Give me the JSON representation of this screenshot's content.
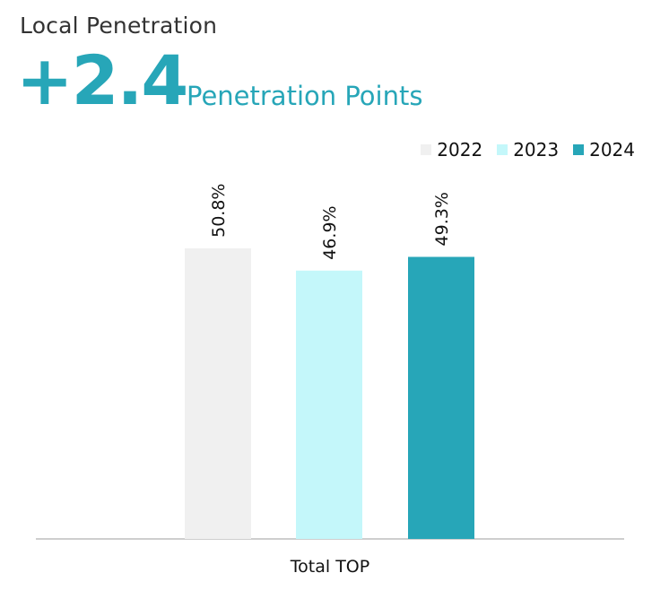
{
  "header": {
    "title": "Local Penetration",
    "big_number": "+2.4",
    "big_number_label": "Penetration Points"
  },
  "chart_data": {
    "type": "bar",
    "categories": [
      "Total TOP"
    ],
    "series": [
      {
        "name": "2022",
        "values": [
          50.8
        ],
        "color": "#f0f0f0",
        "label": "50.8%"
      },
      {
        "name": "2023",
        "values": [
          46.9
        ],
        "color": "#c4f7fa",
        "label": "46.9%"
      },
      {
        "name": "2024",
        "values": [
          49.3
        ],
        "color": "#27a6b8",
        "label": "49.3%"
      }
    ],
    "ylim": [
      0,
      100
    ],
    "grid": false,
    "legend": "top-right"
  }
}
